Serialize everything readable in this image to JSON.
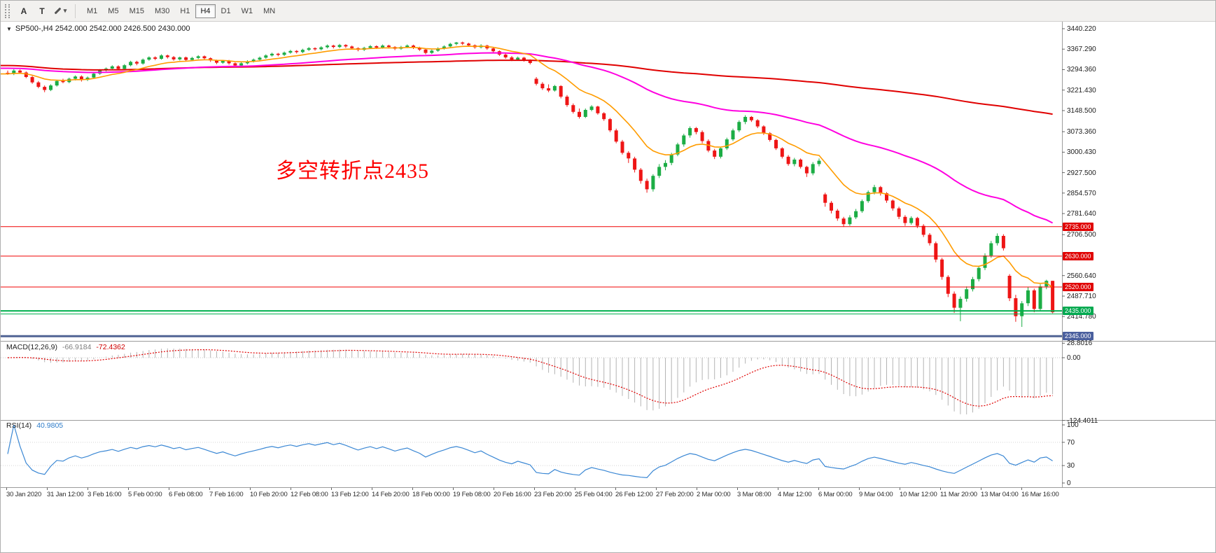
{
  "icons": {
    "chevron_down": "▾",
    "collapse_triangle": "▼"
  },
  "toolbar": {
    "tool_buttons": [
      {
        "label": "A"
      },
      {
        "label": "T"
      },
      {
        "label": "",
        "icon": "pencil"
      }
    ],
    "timeframes": [
      "M1",
      "M5",
      "M15",
      "M30",
      "H1",
      "H4",
      "D1",
      "W1",
      "MN"
    ],
    "active_timeframe": "H4"
  },
  "main_chart": {
    "title": "SP500-,H4 2542.000 2542.000 2426.500 2430.000",
    "annotation": "多空转折点2435",
    "annotation_color": "#fd0000",
    "price_axis_labels": [
      "3440.220",
      "3367.290",
      "3294.360",
      "3221.430",
      "3148.500",
      "3073.360",
      "3000.430",
      "2927.500",
      "2854.570",
      "2781.640",
      "2706.500",
      "2560.640",
      "2487.710",
      "2414.780"
    ],
    "levels": [
      {
        "price": 2735.0,
        "label": "2735.000",
        "color": "#f00000",
        "badge": "#e00000",
        "width": 1
      },
      {
        "price": 2630.0,
        "label": "2630.000",
        "color": "#f00000",
        "badge": "#e00000",
        "width": 1
      },
      {
        "price": 2520.0,
        "label": "2520.000",
        "color": "#f00000",
        "badge": "#e00000",
        "width": 1
      },
      {
        "price": 2435.0,
        "label": "2435.000",
        "color": "#00b14e",
        "badge": "#00a94f",
        "width": 2
      },
      {
        "price": 2424.0,
        "label": null,
        "color": "#00b14e",
        "badge": null,
        "width": 1
      },
      {
        "price": 2345.0,
        "label": "2345.000",
        "color": "#506394",
        "badge": "#4a5f9e",
        "width": 3
      }
    ]
  },
  "chart_data": {
    "type": "candlestick",
    "symbol": "SP500-",
    "timeframe": "H4",
    "up_color": "#1cad45",
    "down_color": "#ee1515",
    "moving_averages": [
      {
        "kind": "anchored_mean",
        "seed": 3310,
        "seed_weight": 30,
        "color": "#e00000",
        "width": 2
      },
      {
        "kind": "ema",
        "period": 60,
        "seed": 3300,
        "color": "#ff00e0",
        "width": 2
      },
      {
        "kind": "ema",
        "period": 12,
        "color": "#ff9c00",
        "width": 1.6
      }
    ],
    "ohlc": [
      [
        3283,
        3291,
        3276,
        3279
      ],
      [
        3279,
        3296,
        3275,
        3291
      ],
      [
        3291,
        3295,
        3280,
        3284
      ],
      [
        3284,
        3288,
        3264,
        3268
      ],
      [
        3268,
        3272,
        3244,
        3249
      ],
      [
        3249,
        3254,
        3228,
        3233
      ],
      [
        3233,
        3238,
        3214,
        3222
      ],
      [
        3222,
        3242,
        3218,
        3238
      ],
      [
        3238,
        3258,
        3234,
        3254
      ],
      [
        3254,
        3262,
        3246,
        3250
      ],
      [
        3250,
        3266,
        3246,
        3262
      ],
      [
        3262,
        3274,
        3256,
        3270
      ],
      [
        3270,
        3274,
        3252,
        3258
      ],
      [
        3258,
        3270,
        3254,
        3266
      ],
      [
        3266,
        3284,
        3262,
        3280
      ],
      [
        3280,
        3296,
        3276,
        3292
      ],
      [
        3292,
        3302,
        3288,
        3298
      ],
      [
        3298,
        3310,
        3292,
        3306
      ],
      [
        3306,
        3310,
        3292,
        3297
      ],
      [
        3297,
        3314,
        3294,
        3310
      ],
      [
        3310,
        3326,
        3306,
        3322
      ],
      [
        3322,
        3326,
        3310,
        3316
      ],
      [
        3316,
        3334,
        3312,
        3330
      ],
      [
        3330,
        3342,
        3326,
        3338
      ],
      [
        3338,
        3342,
        3328,
        3333
      ],
      [
        3333,
        3349,
        3330,
        3345
      ],
      [
        3345,
        3348,
        3334,
        3339
      ],
      [
        3339,
        3343,
        3326,
        3331
      ],
      [
        3331,
        3341,
        3327,
        3338
      ],
      [
        3338,
        3341,
        3324,
        3329
      ],
      [
        3329,
        3340,
        3325,
        3336
      ],
      [
        3336,
        3346,
        3332,
        3342
      ],
      [
        3342,
        3345,
        3330,
        3335
      ],
      [
        3335,
        3338,
        3322,
        3327
      ],
      [
        3327,
        3330,
        3314,
        3319
      ],
      [
        3319,
        3329,
        3315,
        3326
      ],
      [
        3326,
        3329,
        3312,
        3317
      ],
      [
        3317,
        3320,
        3304,
        3309
      ],
      [
        3309,
        3321,
        3305,
        3317
      ],
      [
        3317,
        3328,
        3313,
        3324
      ],
      [
        3324,
        3334,
        3320,
        3330
      ],
      [
        3330,
        3341,
        3326,
        3337
      ],
      [
        3337,
        3349,
        3333,
        3345
      ],
      [
        3345,
        3355,
        3341,
        3351
      ],
      [
        3351,
        3354,
        3342,
        3347
      ],
      [
        3347,
        3359,
        3343,
        3355
      ],
      [
        3355,
        3365,
        3351,
        3361
      ],
      [
        3361,
        3364,
        3352,
        3357
      ],
      [
        3357,
        3369,
        3353,
        3365
      ],
      [
        3365,
        3375,
        3361,
        3371
      ],
      [
        3371,
        3374,
        3362,
        3367
      ],
      [
        3367,
        3378,
        3363,
        3374
      ],
      [
        3374,
        3384,
        3370,
        3380
      ],
      [
        3380,
        3383,
        3370,
        3375
      ],
      [
        3375,
        3386,
        3371,
        3382
      ],
      [
        3382,
        3385,
        3372,
        3377
      ],
      [
        3377,
        3380,
        3366,
        3371
      ],
      [
        3371,
        3374,
        3360,
        3365
      ],
      [
        3365,
        3376,
        3361,
        3372
      ],
      [
        3372,
        3382,
        3368,
        3378
      ],
      [
        3378,
        3381,
        3368,
        3373
      ],
      [
        3373,
        3384,
        3369,
        3380
      ],
      [
        3380,
        3383,
        3370,
        3375
      ],
      [
        3375,
        3378,
        3364,
        3369
      ],
      [
        3369,
        3379,
        3365,
        3375
      ],
      [
        3375,
        3384,
        3371,
        3380
      ],
      [
        3380,
        3383,
        3368,
        3373
      ],
      [
        3373,
        3376,
        3361,
        3366
      ],
      [
        3366,
        3369,
        3349,
        3354
      ],
      [
        3354,
        3366,
        3350,
        3362
      ],
      [
        3362,
        3374,
        3358,
        3370
      ],
      [
        3370,
        3381,
        3366,
        3377
      ],
      [
        3377,
        3390,
        3373,
        3386
      ],
      [
        3386,
        3393,
        3381,
        3391
      ],
      [
        3391,
        3394,
        3382,
        3387
      ],
      [
        3387,
        3390,
        3376,
        3381
      ],
      [
        3381,
        3384,
        3369,
        3374
      ],
      [
        3374,
        3385,
        3370,
        3380
      ],
      [
        3380,
        3383,
        3365,
        3370
      ],
      [
        3370,
        3373,
        3355,
        3360
      ],
      [
        3360,
        3363,
        3343,
        3348
      ],
      [
        3348,
        3352,
        3333,
        3338
      ],
      [
        3338,
        3343,
        3325,
        3330
      ],
      [
        3330,
        3341,
        3326,
        3337
      ],
      [
        3337,
        3340,
        3323,
        3328
      ],
      [
        3328,
        3331,
        3313,
        3318
      ],
      [
        3262,
        3268,
        3238,
        3244
      ],
      [
        3244,
        3250,
        3222,
        3228
      ],
      [
        3228,
        3242,
        3214,
        3220
      ],
      [
        3220,
        3240,
        3216,
        3236
      ],
      [
        3236,
        3239,
        3192,
        3198
      ],
      [
        3198,
        3204,
        3162,
        3168
      ],
      [
        3168,
        3174,
        3138,
        3144
      ],
      [
        3144,
        3156,
        3120,
        3126
      ],
      [
        3126,
        3156,
        3122,
        3151
      ],
      [
        3151,
        3168,
        3146,
        3163
      ],
      [
        3163,
        3166,
        3134,
        3139
      ],
      [
        3139,
        3143,
        3112,
        3118
      ],
      [
        3118,
        3122,
        3072,
        3078
      ],
      [
        3078,
        3084,
        3032,
        3038
      ],
      [
        3038,
        3044,
        2992,
        2998
      ],
      [
        2998,
        3004,
        2962,
        2978
      ],
      [
        2978,
        2984,
        2928,
        2938
      ],
      [
        2938,
        2944,
        2888,
        2898
      ],
      [
        2898,
        2906,
        2856,
        2868
      ],
      [
        2868,
        2922,
        2860,
        2916
      ],
      [
        2916,
        2958,
        2908,
        2948
      ],
      [
        2948,
        2972,
        2936,
        2962
      ],
      [
        2962,
        2998,
        2954,
        2992
      ],
      [
        2992,
        3034,
        2986,
        3028
      ],
      [
        3028,
        3066,
        3020,
        3060
      ],
      [
        3060,
        3092,
        3052,
        3086
      ],
      [
        3086,
        3090,
        3064,
        3072
      ],
      [
        3072,
        3078,
        3032,
        3040
      ],
      [
        3040,
        3046,
        3000,
        3006
      ],
      [
        3006,
        3012,
        2976,
        2984
      ],
      [
        2984,
        3020,
        2978,
        3014
      ],
      [
        3014,
        3052,
        3008,
        3046
      ],
      [
        3046,
        3084,
        3040,
        3078
      ],
      [
        3078,
        3114,
        3072,
        3108
      ],
      [
        3108,
        3132,
        3100,
        3126
      ],
      [
        3126,
        3129,
        3108,
        3114
      ],
      [
        3114,
        3118,
        3086,
        3092
      ],
      [
        3092,
        3096,
        3062,
        3068
      ],
      [
        3068,
        3072,
        3038,
        3044
      ],
      [
        3044,
        3048,
        3008,
        3014
      ],
      [
        3014,
        3018,
        2978,
        2984
      ],
      [
        2984,
        2990,
        2952,
        2958
      ],
      [
        2958,
        2980,
        2950,
        2974
      ],
      [
        2974,
        2978,
        2942,
        2948
      ],
      [
        2948,
        2952,
        2912,
        2925
      ],
      [
        2925,
        2965,
        2918,
        2958
      ],
      [
        2958,
        2978,
        2950,
        2970
      ],
      [
        2850,
        2856,
        2806,
        2820
      ],
      [
        2820,
        2826,
        2782,
        2792
      ],
      [
        2792,
        2798,
        2756,
        2764
      ],
      [
        2764,
        2770,
        2734,
        2744
      ],
      [
        2744,
        2776,
        2738,
        2768
      ],
      [
        2768,
        2798,
        2762,
        2790
      ],
      [
        2790,
        2832,
        2784,
        2826
      ],
      [
        2826,
        2864,
        2820,
        2858
      ],
      [
        2858,
        2884,
        2850,
        2876
      ],
      [
        2876,
        2880,
        2846,
        2854
      ],
      [
        2854,
        2858,
        2820,
        2828
      ],
      [
        2828,
        2832,
        2792,
        2800
      ],
      [
        2800,
        2806,
        2762,
        2770
      ],
      [
        2770,
        2776,
        2738,
        2748
      ],
      [
        2748,
        2772,
        2742,
        2766
      ],
      [
        2766,
        2770,
        2730,
        2738
      ],
      [
        2738,
        2744,
        2698,
        2706
      ],
      [
        2706,
        2712,
        2668,
        2676
      ],
      [
        2676,
        2682,
        2608,
        2618
      ],
      [
        2618,
        2624,
        2546,
        2556
      ],
      [
        2556,
        2562,
        2484,
        2496
      ],
      [
        2496,
        2504,
        2428,
        2446
      ],
      [
        2446,
        2486,
        2398,
        2478
      ],
      [
        2478,
        2522,
        2468,
        2512
      ],
      [
        2512,
        2556,
        2504,
        2548
      ],
      [
        2548,
        2596,
        2540,
        2588
      ],
      [
        2588,
        2640,
        2580,
        2632
      ],
      [
        2632,
        2684,
        2624,
        2676
      ],
      [
        2676,
        2711,
        2668,
        2702
      ],
      [
        2702,
        2708,
        2650,
        2658
      ],
      [
        2560,
        2566,
        2470,
        2480
      ],
      [
        2480,
        2492,
        2396,
        2416
      ],
      [
        2416,
        2470,
        2378,
        2462
      ],
      [
        2462,
        2520,
        2452,
        2508
      ],
      [
        2508,
        2514,
        2430,
        2442
      ],
      [
        2442,
        2530,
        2436,
        2522
      ],
      [
        2522,
        2546,
        2512,
        2542
      ],
      [
        2542,
        2542,
        2426.5,
        2430
      ]
    ]
  },
  "macd_panel": {
    "name": "MACD(12,26,9)",
    "main_value": "-66.9184",
    "signal_value": "-72.4362",
    "params": {
      "fast": 12,
      "slow": 26,
      "signal": 9
    },
    "histogram_color": "#b4b4b4",
    "signal_color": "#e00000",
    "axis_labels": [
      {
        "text": "28.8016",
        "value": 28.8016
      },
      {
        "text": "0.00",
        "value": 0
      },
      {
        "text": "-124.4011",
        "value": -124.4011
      }
    ]
  },
  "rsi_panel": {
    "name": "RSI(14)",
    "value": "40.9805",
    "period": 14,
    "line_color": "#3a87d4",
    "levels": [
      70,
      30
    ],
    "axis_labels": [
      {
        "text": "100",
        "value": 100
      },
      {
        "text": "70",
        "value": 70
      },
      {
        "text": "30",
        "value": 30
      },
      {
        "text": "0",
        "value": 0
      }
    ]
  },
  "time_axis": [
    "30 Jan 2020",
    "31 Jan 12:00",
    "3 Feb 16:00",
    "5 Feb 00:00",
    "6 Feb 08:00",
    "7 Feb 16:00",
    "10 Feb 20:00",
    "12 Feb 08:00",
    "13 Feb 12:00",
    "14 Feb 20:00",
    "18 Feb 00:00",
    "19 Feb 08:00",
    "20 Feb 16:00",
    "23 Feb 20:00",
    "25 Feb 04:00",
    "26 Feb 12:00",
    "27 Feb 20:00",
    "2 Mar 00:00",
    "3 Mar 08:00",
    "4 Mar 12:00",
    "6 Mar 00:00",
    "9 Mar 04:00",
    "10 Mar 12:00",
    "11 Mar 20:00",
    "13 Mar 04:00",
    "16 Mar 16:00"
  ]
}
